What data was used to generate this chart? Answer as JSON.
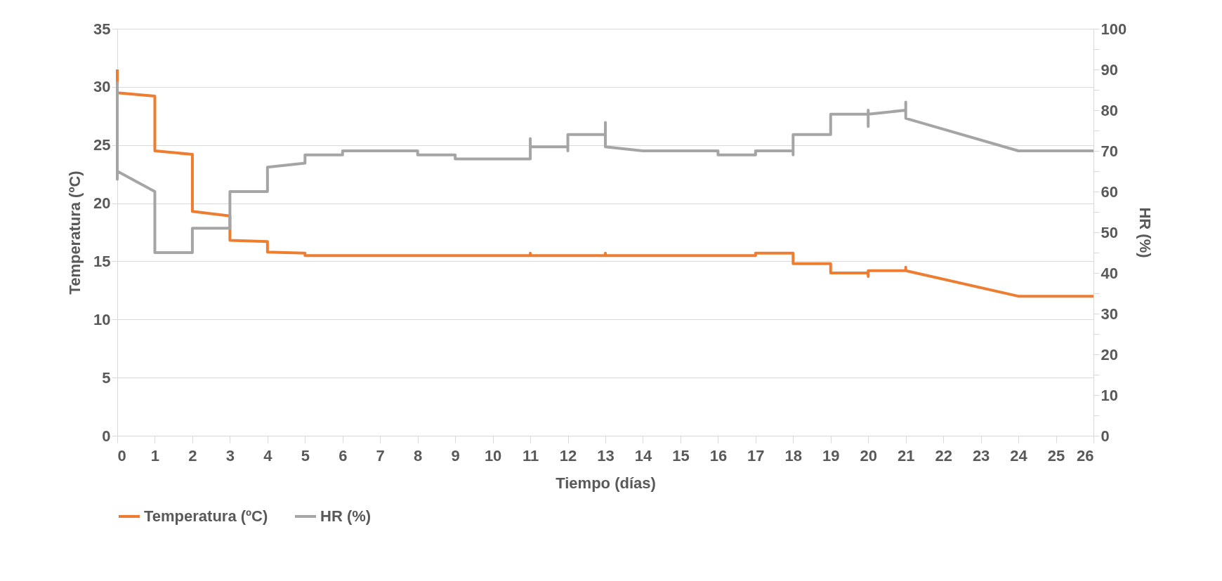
{
  "chart_data": {
    "type": "line",
    "xlabel": "Tiempo (días)",
    "ylabel": "Temperatura (ºC)",
    "y2label": "HR (%)",
    "xlim": [
      0,
      26
    ],
    "xticks": [
      0,
      1,
      2,
      3,
      4,
      5,
      6,
      7,
      8,
      9,
      10,
      11,
      12,
      13,
      14,
      15,
      16,
      17,
      18,
      19,
      20,
      21,
      22,
      23,
      24,
      25,
      26
    ],
    "ylim": [
      0,
      35
    ],
    "yticks": [
      0,
      5,
      10,
      15,
      20,
      25,
      30,
      35
    ],
    "y2lim": [
      0,
      100
    ],
    "y2ticks": [
      0,
      {
        "value": 5,
        "label": null
      },
      10,
      {
        "value": 15,
        "label": null
      },
      20,
      {
        "value": 25,
        "label": null
      },
      30,
      {
        "value": 35,
        "label": null
      },
      40,
      {
        "value": 45,
        "label": null
      },
      50,
      {
        "value": 55,
        "label": null
      },
      60,
      {
        "value": 65,
        "label": null
      },
      70,
      {
        "value": 75,
        "label": null
      },
      80,
      {
        "value": 85,
        "label": null
      },
      90,
      {
        "value": 95,
        "label": null
      },
      100
    ],
    "grid": "y",
    "legend": "bottom",
    "marker": "none",
    "line_style": "solid",
    "series": [
      {
        "name": "Temperatura (ºC)",
        "color": "#ed7d31",
        "x": [
          0,
          0,
          1,
          1,
          1,
          2,
          2,
          3,
          3,
          4,
          4,
          5,
          5,
          11,
          11,
          11,
          13,
          13,
          13,
          17,
          17,
          18,
          18,
          19,
          19,
          20,
          20,
          20,
          21,
          21,
          21,
          24,
          26
        ],
        "values": [
          31.5,
          29.5,
          29.2,
          27.8,
          24.5,
          24.2,
          19.3,
          18.9,
          16.8,
          16.7,
          15.8,
          15.7,
          15.5,
          15.5,
          15.7,
          15.5,
          15.5,
          15.7,
          15.5,
          15.5,
          15.7,
          15.7,
          14.8,
          14.8,
          14.0,
          14.0,
          13.7,
          14.2,
          14.2,
          14.5,
          14.2,
          12,
          12
        ]
      },
      {
        "name": "HR (%)",
        "color": "#a5a5a5",
        "axis": "y2",
        "x": [
          0,
          0,
          0,
          1,
          1,
          2,
          2,
          3,
          3,
          4,
          4,
          5,
          5,
          6,
          6,
          8,
          8,
          9,
          9,
          11,
          11,
          11,
          12,
          12,
          12,
          13,
          13,
          13,
          14,
          16,
          16,
          17,
          17,
          18,
          18,
          18,
          19,
          19,
          20,
          20,
          20,
          20,
          21,
          21,
          21,
          24,
          26
        ],
        "values": [
          87,
          63,
          65,
          60,
          45,
          45,
          51,
          51,
          60,
          60,
          66,
          67,
          69,
          69,
          70,
          70,
          69,
          69,
          68,
          68,
          73,
          71,
          71,
          70,
          74,
          74,
          77,
          71,
          70,
          70,
          69,
          69,
          70,
          70,
          69,
          74,
          74,
          79,
          79,
          80,
          76,
          79,
          80,
          82,
          78,
          70,
          70
        ]
      }
    ]
  }
}
